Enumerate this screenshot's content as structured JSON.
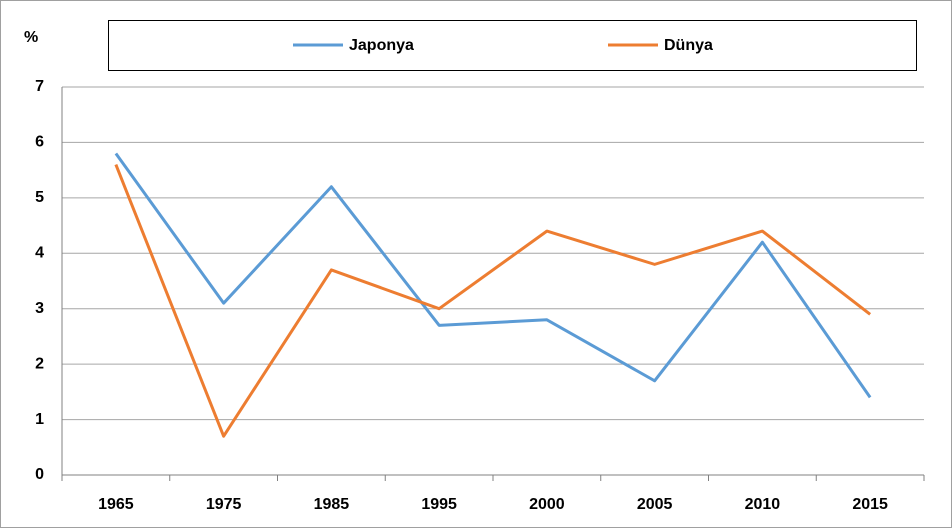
{
  "chart_data": {
    "type": "line",
    "y_label": "%",
    "categories": [
      "1965",
      "1975",
      "1985",
      "1995",
      "2000",
      "2005",
      "2010",
      "2015"
    ],
    "series": [
      {
        "name": "Japonya",
        "color": "#5b9bd5",
        "values": [
          5.8,
          3.1,
          5.2,
          2.7,
          2.8,
          1.7,
          4.2,
          1.4
        ]
      },
      {
        "name": "Dünya",
        "color": "#ed7d31",
        "values": [
          5.6,
          0.7,
          3.7,
          3.0,
          4.4,
          3.8,
          4.4,
          2.9
        ]
      }
    ],
    "ylim": [
      0,
      7
    ],
    "yticks": [
      0,
      1,
      2,
      3,
      4,
      5,
      6,
      7
    ],
    "grid": true,
    "legend": "top"
  }
}
